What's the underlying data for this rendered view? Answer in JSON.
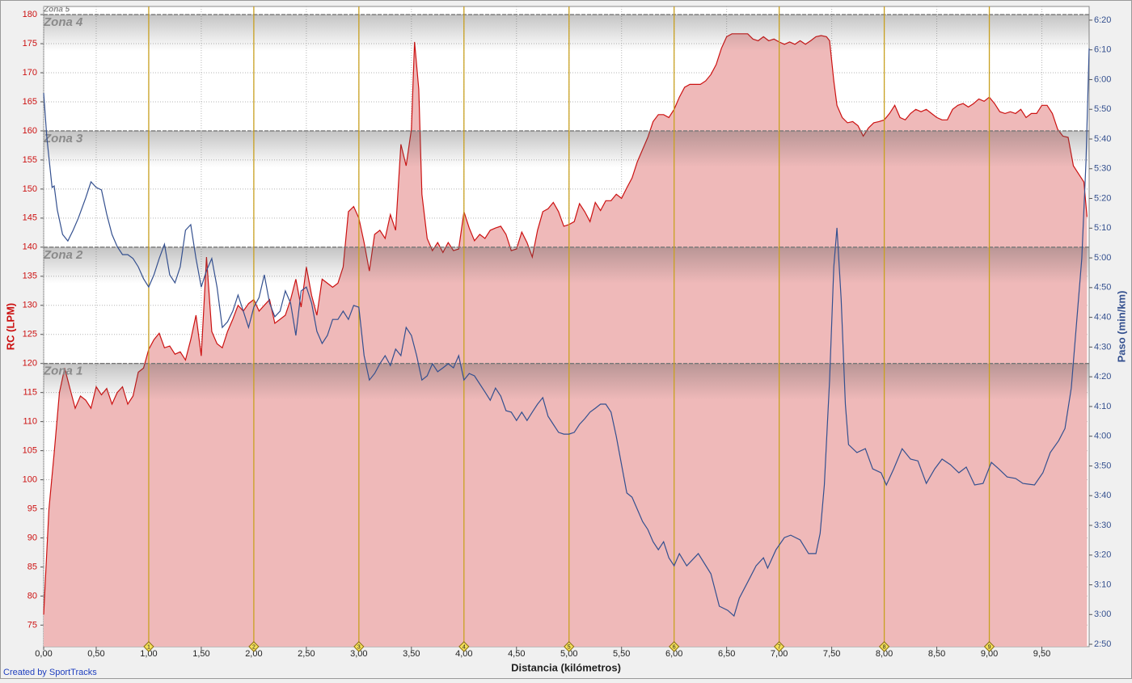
{
  "chart_data": {
    "type": "area-line",
    "x_label": "Distancia (kilómetros)",
    "y_label": "RC (LPM)",
    "y2_label": "Paso (min/km)",
    "credit": "Created by SportTracks",
    "top_zone": "Zona 5",
    "zones": [
      {
        "value": 120,
        "label": "Zona 1"
      },
      {
        "value": 140,
        "label": "Zona 2"
      },
      {
        "value": 160,
        "label": "Zona 3"
      },
      {
        "value": 180,
        "label": "Zona 4"
      }
    ],
    "km_markers": [
      1,
      2,
      3,
      4,
      5,
      6,
      7,
      8,
      9
    ],
    "xlim": [
      0,
      9.95
    ],
    "ylim": [
      71.3,
      181.4
    ],
    "y2lim": [
      169.2,
      384.6
    ],
    "grid": true,
    "xticks": [
      {
        "value": 0,
        "label": "0,00"
      },
      {
        "value": 0.5,
        "label": "0,50"
      },
      {
        "value": 1,
        "label": "1,00"
      },
      {
        "value": 1.5,
        "label": "1,50"
      },
      {
        "value": 2,
        "label": "2,00"
      },
      {
        "value": 2.5,
        "label": "2,50"
      },
      {
        "value": 3,
        "label": "3,00"
      },
      {
        "value": 3.5,
        "label": "3,50"
      },
      {
        "value": 4,
        "label": "4,00"
      },
      {
        "value": 4.5,
        "label": "4,50"
      },
      {
        "value": 5,
        "label": "5,00"
      },
      {
        "value": 5.5,
        "label": "5,50"
      },
      {
        "value": 6,
        "label": "6,00"
      },
      {
        "value": 6.5,
        "label": "6,50"
      },
      {
        "value": 7,
        "label": "7,00"
      },
      {
        "value": 7.5,
        "label": "7,50"
      },
      {
        "value": 8,
        "label": "8,00"
      },
      {
        "value": 8.5,
        "label": "8,50"
      },
      {
        "value": 9,
        "label": "9,00"
      },
      {
        "value": 9.5,
        "label": "9,50"
      }
    ],
    "yticks": [
      75,
      80,
      85,
      90,
      95,
      100,
      105,
      110,
      115,
      120,
      125,
      130,
      135,
      140,
      145,
      150,
      155,
      160,
      165,
      170,
      175,
      180
    ],
    "y2ticks": [
      {
        "value": 170,
        "label": "2:50"
      },
      {
        "value": 180,
        "label": "3:00"
      },
      {
        "value": 190,
        "label": "3:10"
      },
      {
        "value": 200,
        "label": "3:20"
      },
      {
        "value": 210,
        "label": "3:30"
      },
      {
        "value": 220,
        "label": "3:40"
      },
      {
        "value": 230,
        "label": "3:50"
      },
      {
        "value": 240,
        "label": "4:00"
      },
      {
        "value": 250,
        "label": "4:10"
      },
      {
        "value": 260,
        "label": "4:20"
      },
      {
        "value": 270,
        "label": "4:30"
      },
      {
        "value": 280,
        "label": "4:40"
      },
      {
        "value": 290,
        "label": "4:50"
      },
      {
        "value": 300,
        "label": "5:00"
      },
      {
        "value": 310,
        "label": "5:10"
      },
      {
        "value": 320,
        "label": "5:20"
      },
      {
        "value": 330,
        "label": "5:30"
      },
      {
        "value": 340,
        "label": "5:40"
      },
      {
        "value": 350,
        "label": "5:50"
      },
      {
        "value": 360,
        "label": "6:00"
      },
      {
        "value": 370,
        "label": "6:10"
      },
      {
        "value": 380,
        "label": "6:20"
      }
    ],
    "series": [
      {
        "kind": "area",
        "color": "#cc1111",
        "fill": "#efb9b9",
        "x": [
          0,
          0.05,
          0.1,
          0.15,
          0.2,
          0.25,
          0.3,
          0.35,
          0.4,
          0.45,
          0.5,
          0.55,
          0.6,
          0.65,
          0.7,
          0.75,
          0.8,
          0.85,
          0.9,
          0.95,
          1,
          1.05,
          1.1,
          1.15,
          1.2,
          1.25,
          1.3,
          1.35,
          1.4,
          1.45,
          1.5,
          1.55,
          1.6,
          1.65,
          1.7,
          1.75,
          1.8,
          1.85,
          1.9,
          1.95,
          2,
          2.05,
          2.1,
          2.15,
          2.2,
          2.25,
          2.3,
          2.35,
          2.4,
          2.45,
          2.5,
          2.55,
          2.6,
          2.65,
          2.7,
          2.75,
          2.8,
          2.85,
          2.9,
          2.95,
          3,
          3.05,
          3.1,
          3.15,
          3.2,
          3.25,
          3.3,
          3.35,
          3.4,
          3.45,
          3.5,
          3.53,
          3.57,
          3.6,
          3.65,
          3.7,
          3.75,
          3.8,
          3.85,
          3.9,
          3.95,
          4,
          4.05,
          4.1,
          4.15,
          4.2,
          4.25,
          4.3,
          4.35,
          4.4,
          4.45,
          4.5,
          4.55,
          4.6,
          4.65,
          4.7,
          4.75,
          4.8,
          4.85,
          4.9,
          4.95,
          5,
          5.05,
          5.1,
          5.15,
          5.2,
          5.25,
          5.3,
          5.35,
          5.4,
          5.45,
          5.5,
          5.55,
          5.6,
          5.65,
          5.7,
          5.75,
          5.8,
          5.85,
          5.9,
          5.95,
          6,
          6.05,
          6.1,
          6.15,
          6.2,
          6.25,
          6.3,
          6.35,
          6.4,
          6.45,
          6.5,
          6.55,
          6.6,
          6.65,
          6.7,
          6.75,
          6.8,
          6.85,
          6.9,
          6.95,
          7,
          7.05,
          7.1,
          7.15,
          7.2,
          7.25,
          7.3,
          7.35,
          7.4,
          7.45,
          7.48,
          7.52,
          7.55,
          7.6,
          7.65,
          7.7,
          7.75,
          7.8,
          7.85,
          7.9,
          7.95,
          8,
          8.05,
          8.1,
          8.15,
          8.2,
          8.25,
          8.3,
          8.35,
          8.4,
          8.45,
          8.5,
          8.55,
          8.6,
          8.65,
          8.7,
          8.75,
          8.8,
          8.85,
          8.9,
          8.95,
          9,
          9.05,
          9.1,
          9.15,
          9.2,
          9.25,
          9.3,
          9.35,
          9.4,
          9.45,
          9.5,
          9.55,
          9.6,
          9.65,
          9.7,
          9.75,
          9.8,
          9.85,
          9.9,
          9.93
        ],
        "values": [
          76.8,
          94.9,
          104.6,
          115,
          119.2,
          115.7,
          112.3,
          114.4,
          113.7,
          112.3,
          116,
          114.6,
          115.7,
          113,
          115,
          116,
          113,
          114.4,
          118.5,
          119.2,
          122.4,
          124.1,
          125.2,
          122.7,
          123,
          121.6,
          122,
          120.6,
          124.1,
          128.3,
          121.3,
          138.3,
          125.5,
          123.4,
          122.7,
          125.5,
          127.6,
          130,
          129,
          130.3,
          131,
          129,
          130,
          131,
          126.9,
          127.6,
          128.3,
          131,
          134.5,
          129.7,
          136.6,
          131.7,
          128.3,
          134.5,
          133.8,
          133.1,
          133.8,
          136.6,
          146.1,
          147,
          145,
          140.8,
          135.9,
          142.2,
          142.9,
          141.5,
          145.6,
          142.9,
          157.7,
          154,
          160.3,
          175.3,
          167.2,
          149.1,
          141.5,
          139.4,
          140.8,
          139.1,
          140.8,
          139.4,
          139.7,
          146.1,
          143.3,
          141.1,
          142.2,
          141.5,
          142.9,
          143.3,
          143.6,
          142.2,
          139.4,
          139.7,
          142.6,
          140.8,
          138.3,
          142.9,
          146.1,
          146.6,
          147.7,
          146.1,
          143.6,
          143.9,
          144.4,
          147.5,
          146.1,
          144.4,
          147.7,
          146.3,
          148,
          148,
          149.1,
          148.4,
          150.2,
          151.9,
          154.7,
          156.8,
          158.9,
          161.6,
          162.8,
          162.8,
          162.3,
          163.7,
          165.8,
          167.5,
          168,
          168,
          168,
          168.6,
          169.7,
          171.4,
          174.2,
          176.2,
          176.7,
          176.7,
          176.7,
          176.7,
          175.8,
          175.5,
          176.2,
          175.5,
          175.8,
          175.3,
          174.9,
          175.3,
          174.9,
          175.5,
          174.9,
          175.5,
          176.2,
          176.4,
          176.2,
          175.5,
          168.6,
          164.4,
          162.3,
          161.4,
          161.6,
          160.9,
          159.1,
          160.5,
          161.4,
          161.6,
          161.9,
          163,
          164.4,
          162.3,
          161.9,
          163,
          163.7,
          163.3,
          163.7,
          163,
          162.3,
          161.9,
          161.9,
          163.7,
          164.4,
          164.7,
          164.1,
          164.7,
          165.5,
          165.1,
          165.8,
          164.7,
          163.3,
          163,
          163.3,
          163,
          163.7,
          162.3,
          163,
          163,
          164.4,
          164.4,
          163,
          160.3,
          159.1,
          158.9,
          154,
          152.6,
          151.2,
          145.2
        ]
      },
      {
        "kind": "line",
        "axis": "y2",
        "color": "#34508f",
        "x": [
          0,
          0.03,
          0.08,
          0.1,
          0.13,
          0.18,
          0.23,
          0.28,
          0.33,
          0.4,
          0.45,
          0.5,
          0.55,
          0.6,
          0.65,
          0.7,
          0.75,
          0.8,
          0.85,
          0.9,
          0.95,
          1,
          1.05,
          1.1,
          1.15,
          1.2,
          1.25,
          1.3,
          1.35,
          1.4,
          1.45,
          1.5,
          1.55,
          1.6,
          1.65,
          1.7,
          1.75,
          1.8,
          1.85,
          1.9,
          1.95,
          2,
          2.05,
          2.1,
          2.15,
          2.2,
          2.25,
          2.3,
          2.35,
          2.4,
          2.45,
          2.5,
          2.55,
          2.6,
          2.65,
          2.7,
          2.75,
          2.8,
          2.85,
          2.9,
          2.95,
          3,
          3.05,
          3.1,
          3.15,
          3.2,
          3.25,
          3.3,
          3.35,
          3.4,
          3.45,
          3.5,
          3.55,
          3.6,
          3.65,
          3.7,
          3.75,
          3.8,
          3.85,
          3.9,
          3.95,
          4,
          4.05,
          4.1,
          4.15,
          4.2,
          4.25,
          4.3,
          4.35,
          4.4,
          4.45,
          4.5,
          4.55,
          4.6,
          4.65,
          4.7,
          4.75,
          4.8,
          4.85,
          4.9,
          4.95,
          5,
          5.05,
          5.1,
          5.15,
          5.2,
          5.25,
          5.3,
          5.35,
          5.4,
          5.45,
          5.5,
          5.55,
          5.6,
          5.65,
          5.7,
          5.75,
          5.8,
          5.85,
          5.9,
          5.95,
          6,
          6.05,
          6.12,
          6.23,
          6.35,
          6.43,
          6.51,
          6.57,
          6.62,
          6.7,
          6.78,
          6.85,
          6.89,
          6.97,
          7.05,
          7.11,
          7.2,
          7.28,
          7.35,
          7.39,
          7.43,
          7.48,
          7.52,
          7.55,
          7.59,
          7.63,
          7.66,
          7.74,
          7.82,
          7.89,
          7.97,
          8.02,
          8.09,
          8.17,
          8.25,
          8.32,
          8.4,
          8.48,
          8.55,
          8.63,
          8.71,
          8.78,
          8.86,
          8.94,
          9.02,
          9.09,
          9.17,
          9.25,
          9.32,
          9.43,
          9.51,
          9.58,
          9.66,
          9.72,
          9.78,
          9.83,
          9.88,
          9.92,
          9.95
        ],
        "values": [
          355.5,
          340.6,
          323.7,
          324.2,
          316.1,
          307.9,
          305.7,
          309.3,
          313.4,
          320.2,
          325.6,
          323.7,
          322.9,
          314.7,
          307.9,
          303.8,
          301.1,
          301.1,
          299.8,
          297,
          293,
          290.2,
          294.3,
          299.8,
          304.6,
          294.3,
          291.6,
          297,
          309.3,
          311.2,
          299.8,
          290.2,
          295.7,
          299.8,
          290.2,
          276.6,
          278.5,
          282.1,
          287.5,
          282.1,
          276.6,
          283.4,
          286.7,
          294.3,
          284.8,
          280.2,
          282.1,
          288.9,
          284.8,
          273.9,
          288.9,
          290.2,
          284.8,
          275.3,
          271.2,
          273.9,
          279.3,
          279.3,
          282.1,
          279.3,
          284,
          283.4,
          267.1,
          258.9,
          261.1,
          264.4,
          267.1,
          263.8,
          269.3,
          267.1,
          276.6,
          273.9,
          267.1,
          258.9,
          260.3,
          264.4,
          261.7,
          263,
          264.4,
          263,
          267.1,
          258.9,
          261.1,
          260.3,
          257.6,
          254.9,
          252.1,
          256.2,
          253.5,
          248.6,
          248.1,
          245.3,
          248.1,
          245.3,
          248.1,
          250.8,
          253,
          246.7,
          244,
          241.3,
          240.7,
          240.7,
          241.3,
          244,
          245.9,
          248.1,
          249.4,
          250.8,
          250.8,
          248.1,
          239.9,
          230.4,
          220.9,
          219.5,
          215.4,
          211.3,
          208.6,
          204.5,
          201.8,
          204.5,
          199.1,
          196.4,
          200.5,
          196.4,
          200.5,
          193.7,
          182.8,
          181.4,
          179.5,
          185.5,
          190.9,
          196.4,
          199.1,
          195.6,
          201.8,
          205.9,
          206.7,
          205.1,
          200.5,
          200.5,
          207.3,
          223.6,
          258.9,
          297,
          310.1,
          286.1,
          250.8,
          237.2,
          234.5,
          235.8,
          229,
          227.7,
          223.6,
          229,
          235.8,
          232.3,
          231.7,
          224.1,
          229,
          232.3,
          230.4,
          227.7,
          229.6,
          223.6,
          224.1,
          231.2,
          229,
          226.3,
          225.8,
          224.1,
          223.6,
          227.7,
          234.5,
          238.5,
          242.6,
          256.2,
          278,
          299.8,
          332.4,
          370.5
        ]
      }
    ]
  }
}
